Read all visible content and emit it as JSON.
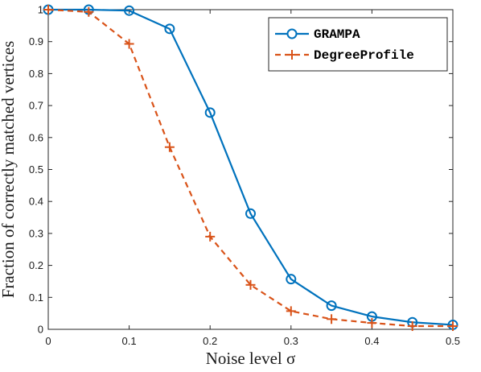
{
  "chart_data": {
    "type": "line",
    "xlabel": "Noise level σ",
    "ylabel": "Fraction of correctly matched vertices",
    "xlim": [
      0,
      0.5
    ],
    "ylim": [
      0,
      1
    ],
    "x_ticks": [
      "0",
      "0.1",
      "0.2",
      "0.3",
      "0.4",
      "0.5"
    ],
    "y_ticks": [
      "0",
      "0.1",
      "0.2",
      "0.3",
      "0.4",
      "0.5",
      "0.6",
      "0.7",
      "0.8",
      "0.9",
      "1"
    ],
    "legend_placement": "top-right",
    "grid": false,
    "x": [
      0,
      0.05,
      0.1,
      0.15,
      0.2,
      0.25,
      0.3,
      0.35,
      0.4,
      0.45,
      0.5
    ],
    "series": [
      {
        "name": "GRAMPA",
        "color": "#0072BD",
        "line_style": "solid",
        "marker": "circle",
        "values": [
          1.0,
          1.0,
          0.997,
          0.94,
          0.678,
          0.362,
          0.157,
          0.074,
          0.04,
          0.022,
          0.014
        ]
      },
      {
        "name": "DegreeProfile",
        "color": "#D95319",
        "line_style": "dashed",
        "marker": "plus",
        "values": [
          1.0,
          0.993,
          0.893,
          0.57,
          0.29,
          0.139,
          0.057,
          0.032,
          0.02,
          0.01,
          0.01
        ]
      }
    ]
  }
}
